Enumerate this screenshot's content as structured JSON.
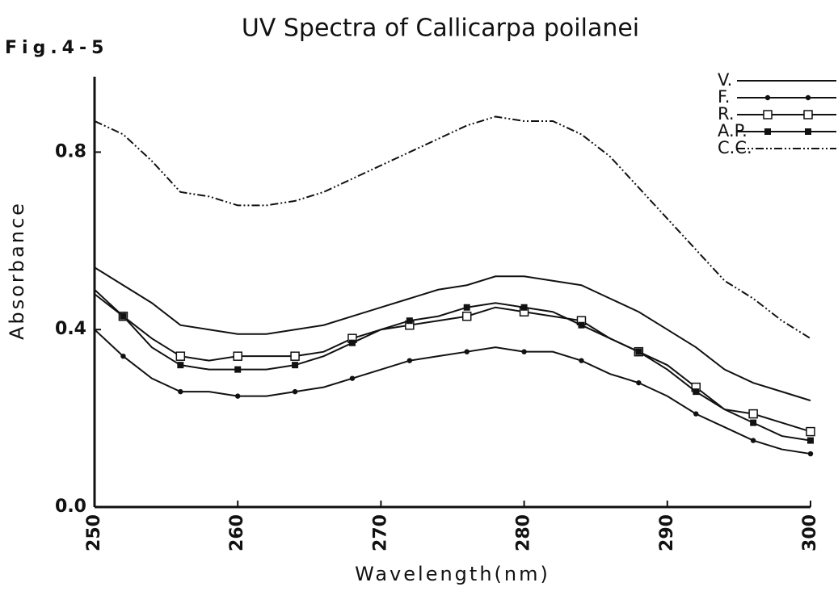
{
  "chart_data": {
    "type": "line",
    "title": "UV Spectra of Callicarpa poilanei",
    "annotation": "Fig.4-5",
    "x_label": "Wavelength(nm)",
    "y_label": "Absorbance",
    "x": [
      250,
      252,
      254,
      256,
      258,
      260,
      262,
      264,
      266,
      268,
      270,
      272,
      274,
      276,
      278,
      280,
      282,
      284,
      286,
      288,
      290,
      292,
      294,
      296,
      298,
      300
    ],
    "series": [
      {
        "name": "V.",
        "color": "#111111",
        "marker": "none",
        "dash": "solid",
        "values": [
          0.54,
          0.5,
          0.46,
          0.41,
          0.4,
          0.39,
          0.39,
          0.4,
          0.41,
          0.43,
          0.45,
          0.47,
          0.49,
          0.5,
          0.52,
          0.52,
          0.51,
          0.5,
          0.47,
          0.44,
          0.4,
          0.36,
          0.31,
          0.28,
          0.26,
          0.24
        ]
      },
      {
        "name": "F.",
        "color": "#111111",
        "marker": "dot",
        "dash": "solid",
        "values": [
          0.4,
          0.34,
          0.29,
          0.26,
          0.26,
          0.25,
          0.25,
          0.26,
          0.27,
          0.29,
          0.31,
          0.33,
          0.34,
          0.35,
          0.36,
          0.35,
          0.35,
          0.33,
          0.3,
          0.28,
          0.25,
          0.21,
          0.18,
          0.15,
          0.13,
          0.12
        ]
      },
      {
        "name": "R.",
        "color": "#111111",
        "marker": "open-square",
        "dash": "solid",
        "values": [
          0.49,
          0.43,
          0.38,
          0.34,
          0.33,
          0.34,
          0.34,
          0.34,
          0.35,
          0.38,
          0.4,
          0.41,
          0.42,
          0.43,
          0.45,
          0.44,
          0.43,
          0.42,
          0.38,
          0.35,
          0.32,
          0.27,
          0.22,
          0.21,
          0.19,
          0.17
        ]
      },
      {
        "name": "A.P.",
        "color": "#111111",
        "marker": "filled-square",
        "dash": "solid",
        "values": [
          0.48,
          0.43,
          0.36,
          0.32,
          0.31,
          0.31,
          0.31,
          0.32,
          0.34,
          0.37,
          0.4,
          0.42,
          0.43,
          0.45,
          0.46,
          0.45,
          0.44,
          0.41,
          0.38,
          0.35,
          0.31,
          0.26,
          0.22,
          0.19,
          0.16,
          0.15
        ]
      },
      {
        "name": "C.C.",
        "color": "#111111",
        "marker": "none",
        "dash": "dash-dot-dot",
        "values": [
          0.87,
          0.84,
          0.78,
          0.71,
          0.7,
          0.68,
          0.68,
          0.69,
          0.71,
          0.74,
          0.77,
          0.8,
          0.83,
          0.86,
          0.88,
          0.87,
          0.87,
          0.84,
          0.79,
          0.72,
          0.65,
          0.58,
          0.51,
          0.47,
          0.42,
          0.38
        ]
      }
    ],
    "xlim": [
      250,
      300
    ],
    "xticks": [
      250,
      260,
      270,
      280,
      290,
      300
    ],
    "ylim": [
      0,
      0.97
    ],
    "yticks": [
      {
        "value": 0,
        "label": "0.0"
      },
      0.4,
      0.8
    ],
    "grid": false,
    "legend": "upper right"
  }
}
